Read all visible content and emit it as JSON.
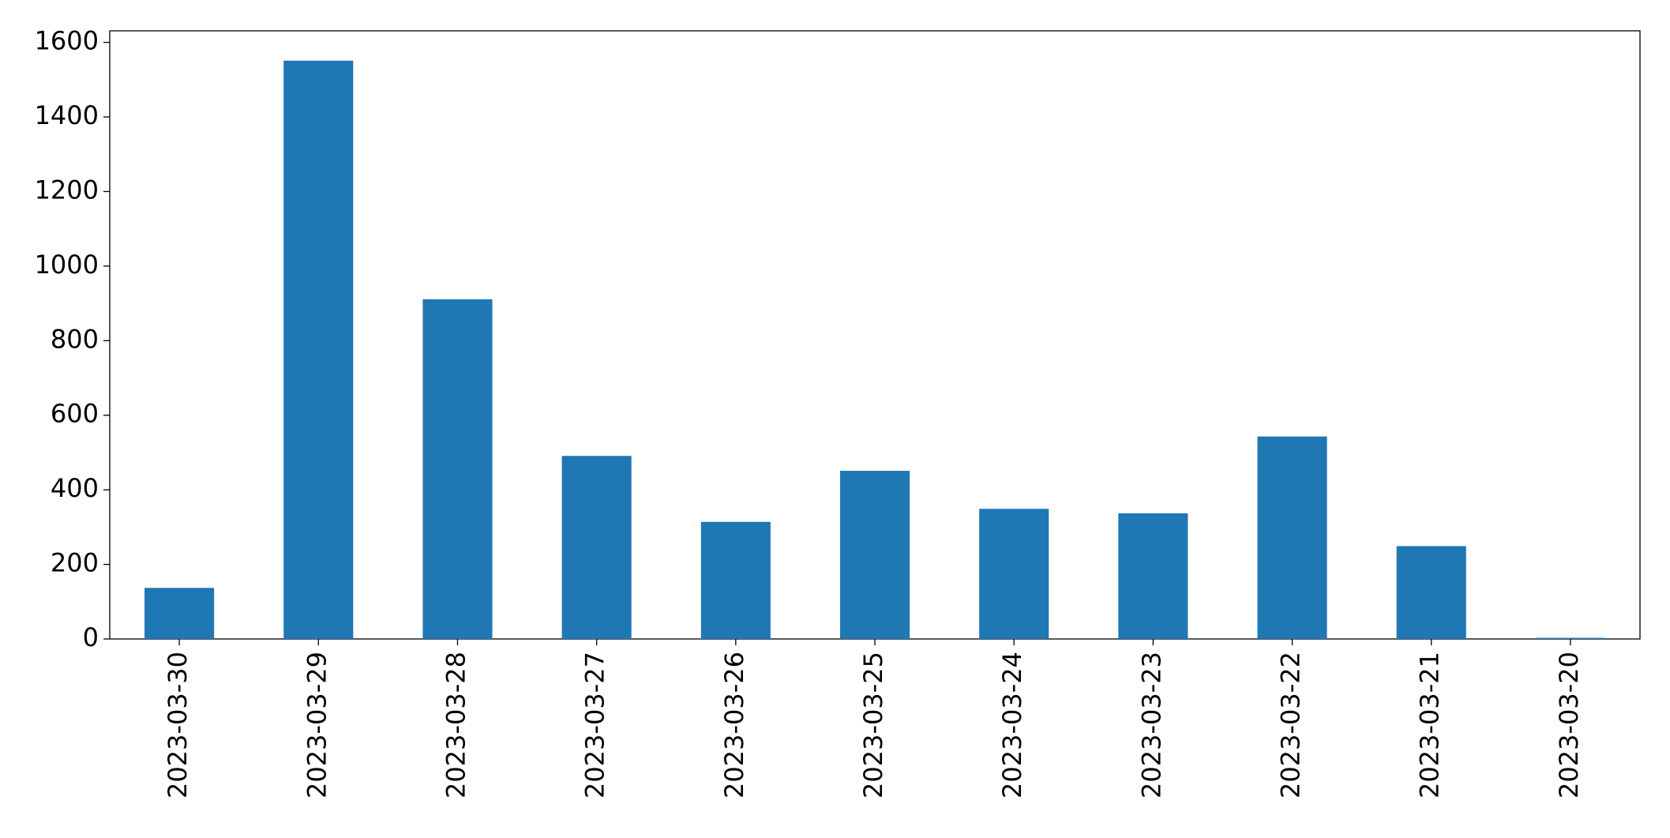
{
  "chart_data": {
    "type": "bar",
    "categories": [
      "2023-03-30",
      "2023-03-29",
      "2023-03-28",
      "2023-03-27",
      "2023-03-26",
      "2023-03-25",
      "2023-03-24",
      "2023-03-23",
      "2023-03-22",
      "2023-03-21",
      "2023-03-20"
    ],
    "values": [
      137,
      1551,
      911,
      491,
      314,
      451,
      349,
      337,
      543,
      249,
      3
    ],
    "color": "#1f77b4",
    "ylim": [
      0,
      1631
    ],
    "yticks": [
      0,
      200,
      400,
      600,
      800,
      1000,
      1200,
      1400,
      1600
    ],
    "grid": false
  }
}
